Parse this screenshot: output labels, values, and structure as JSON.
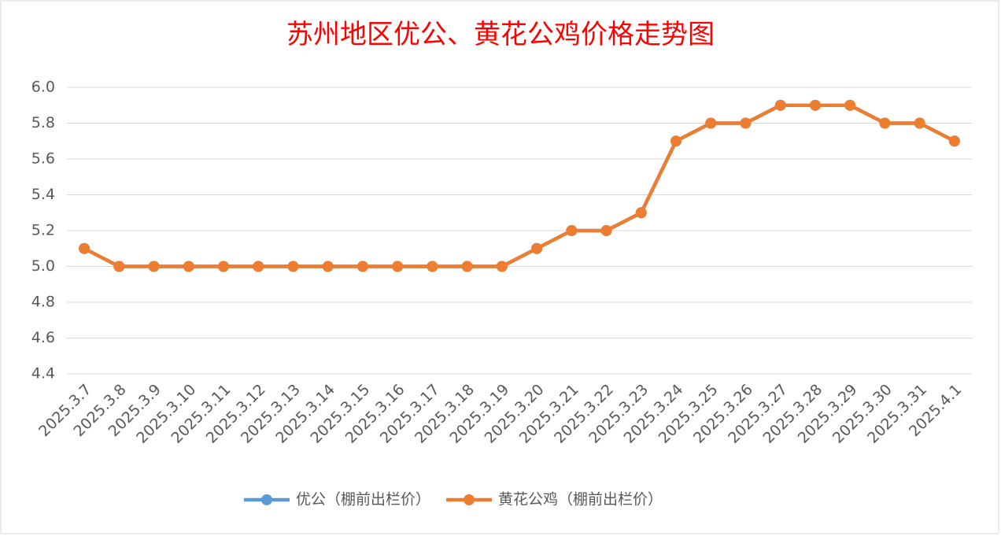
{
  "chart_data": {
    "type": "line",
    "title": "苏州地区优公、黄花公鸡价格走势图",
    "categories": [
      "2025.3.7",
      "2025.3.8",
      "2025.3.9",
      "2025.3.10",
      "2025.3.11",
      "2025.3.12",
      "2025.3.13",
      "2025.3.14",
      "2025.3.15",
      "2025.3.16",
      "2025.3.17",
      "2025.3.18",
      "2025.3.19",
      "2025.3.20",
      "2025.3.21",
      "2025.3.22",
      "2025.3.23",
      "2025.3.24",
      "2025.3.25",
      "2025.3.26",
      "2025.3.27",
      "2025.3.28",
      "2025.3.29",
      "2025.3.30",
      "2025.3.31",
      "2025.4.1"
    ],
    "series": [
      {
        "name": "优公（棚前出栏价）",
        "color": "#5b9bd5",
        "values": [
          5.1,
          5.0,
          5.0,
          5.0,
          5.0,
          5.0,
          5.0,
          5.0,
          5.0,
          5.0,
          5.0,
          5.0,
          5.0,
          5.1,
          5.2,
          5.2,
          5.3,
          5.7,
          5.8,
          5.8,
          5.9,
          5.9,
          5.9,
          5.8,
          5.8,
          5.7
        ]
      },
      {
        "name": "黄花公鸡（棚前出栏价）",
        "color": "#ed7d31",
        "values": [
          5.1,
          5.0,
          5.0,
          5.0,
          5.0,
          5.0,
          5.0,
          5.0,
          5.0,
          5.0,
          5.0,
          5.0,
          5.0,
          5.1,
          5.2,
          5.2,
          5.3,
          5.7,
          5.8,
          5.8,
          5.9,
          5.9,
          5.9,
          5.8,
          5.8,
          5.7
        ]
      }
    ],
    "ylim": [
      4.4,
      6.0
    ],
    "yticks": [
      4.4,
      4.6,
      4.8,
      {
        "value": 5.0,
        "label": "5.0"
      },
      5.2,
      5.4,
      5.6,
      5.8,
      {
        "value": 6.0,
        "label": "6.0"
      }
    ],
    "grid": true,
    "legend": "bottom"
  }
}
